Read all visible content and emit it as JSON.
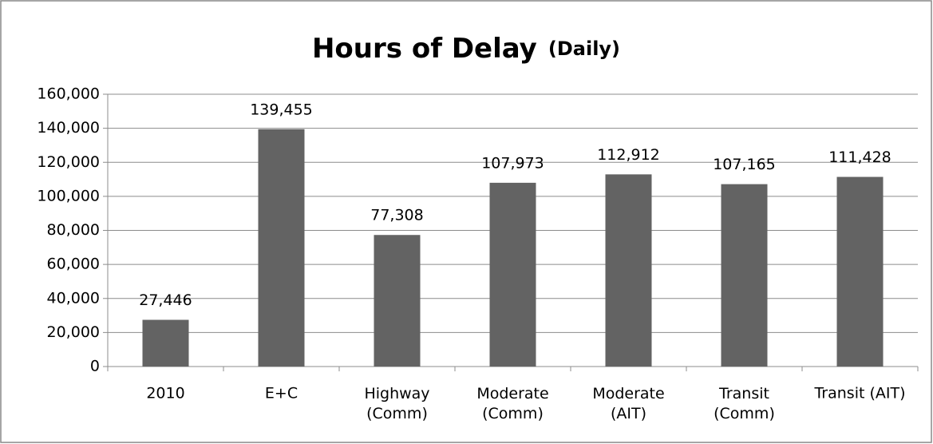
{
  "chart_data": {
    "type": "bar",
    "title": "Hours of Delay",
    "subtitle": "(Daily)",
    "categories": [
      "2010",
      "E+C",
      "Highway\n(Comm)",
      "Moderate\n(Comm)",
      "Moderate\n(AIT)",
      "Transit\n(Comm)",
      "Transit (AIT)"
    ],
    "values": [
      27446,
      139455,
      77308,
      107973,
      112912,
      107165,
      111428
    ],
    "value_labels": [
      "27,446",
      "139,455",
      "77,308",
      "107,973",
      "112,912",
      "107,165",
      "111,428"
    ],
    "color": "#636363",
    "ylim": [
      0,
      160000
    ],
    "yticks": [
      0,
      {
        "value": 20000,
        "label": "20,000"
      },
      {
        "value": 40000,
        "label": "40,000"
      },
      {
        "value": 60000,
        "label": "60,000"
      },
      {
        "value": 80000,
        "label": "80,000"
      },
      {
        "value": 100000,
        "label": "100,000"
      },
      {
        "value": 120000,
        "label": "120,000"
      },
      {
        "value": 140000,
        "label": "140,000"
      },
      {
        "value": 160000,
        "label": "160,000"
      }
    ],
    "grid": true
  }
}
